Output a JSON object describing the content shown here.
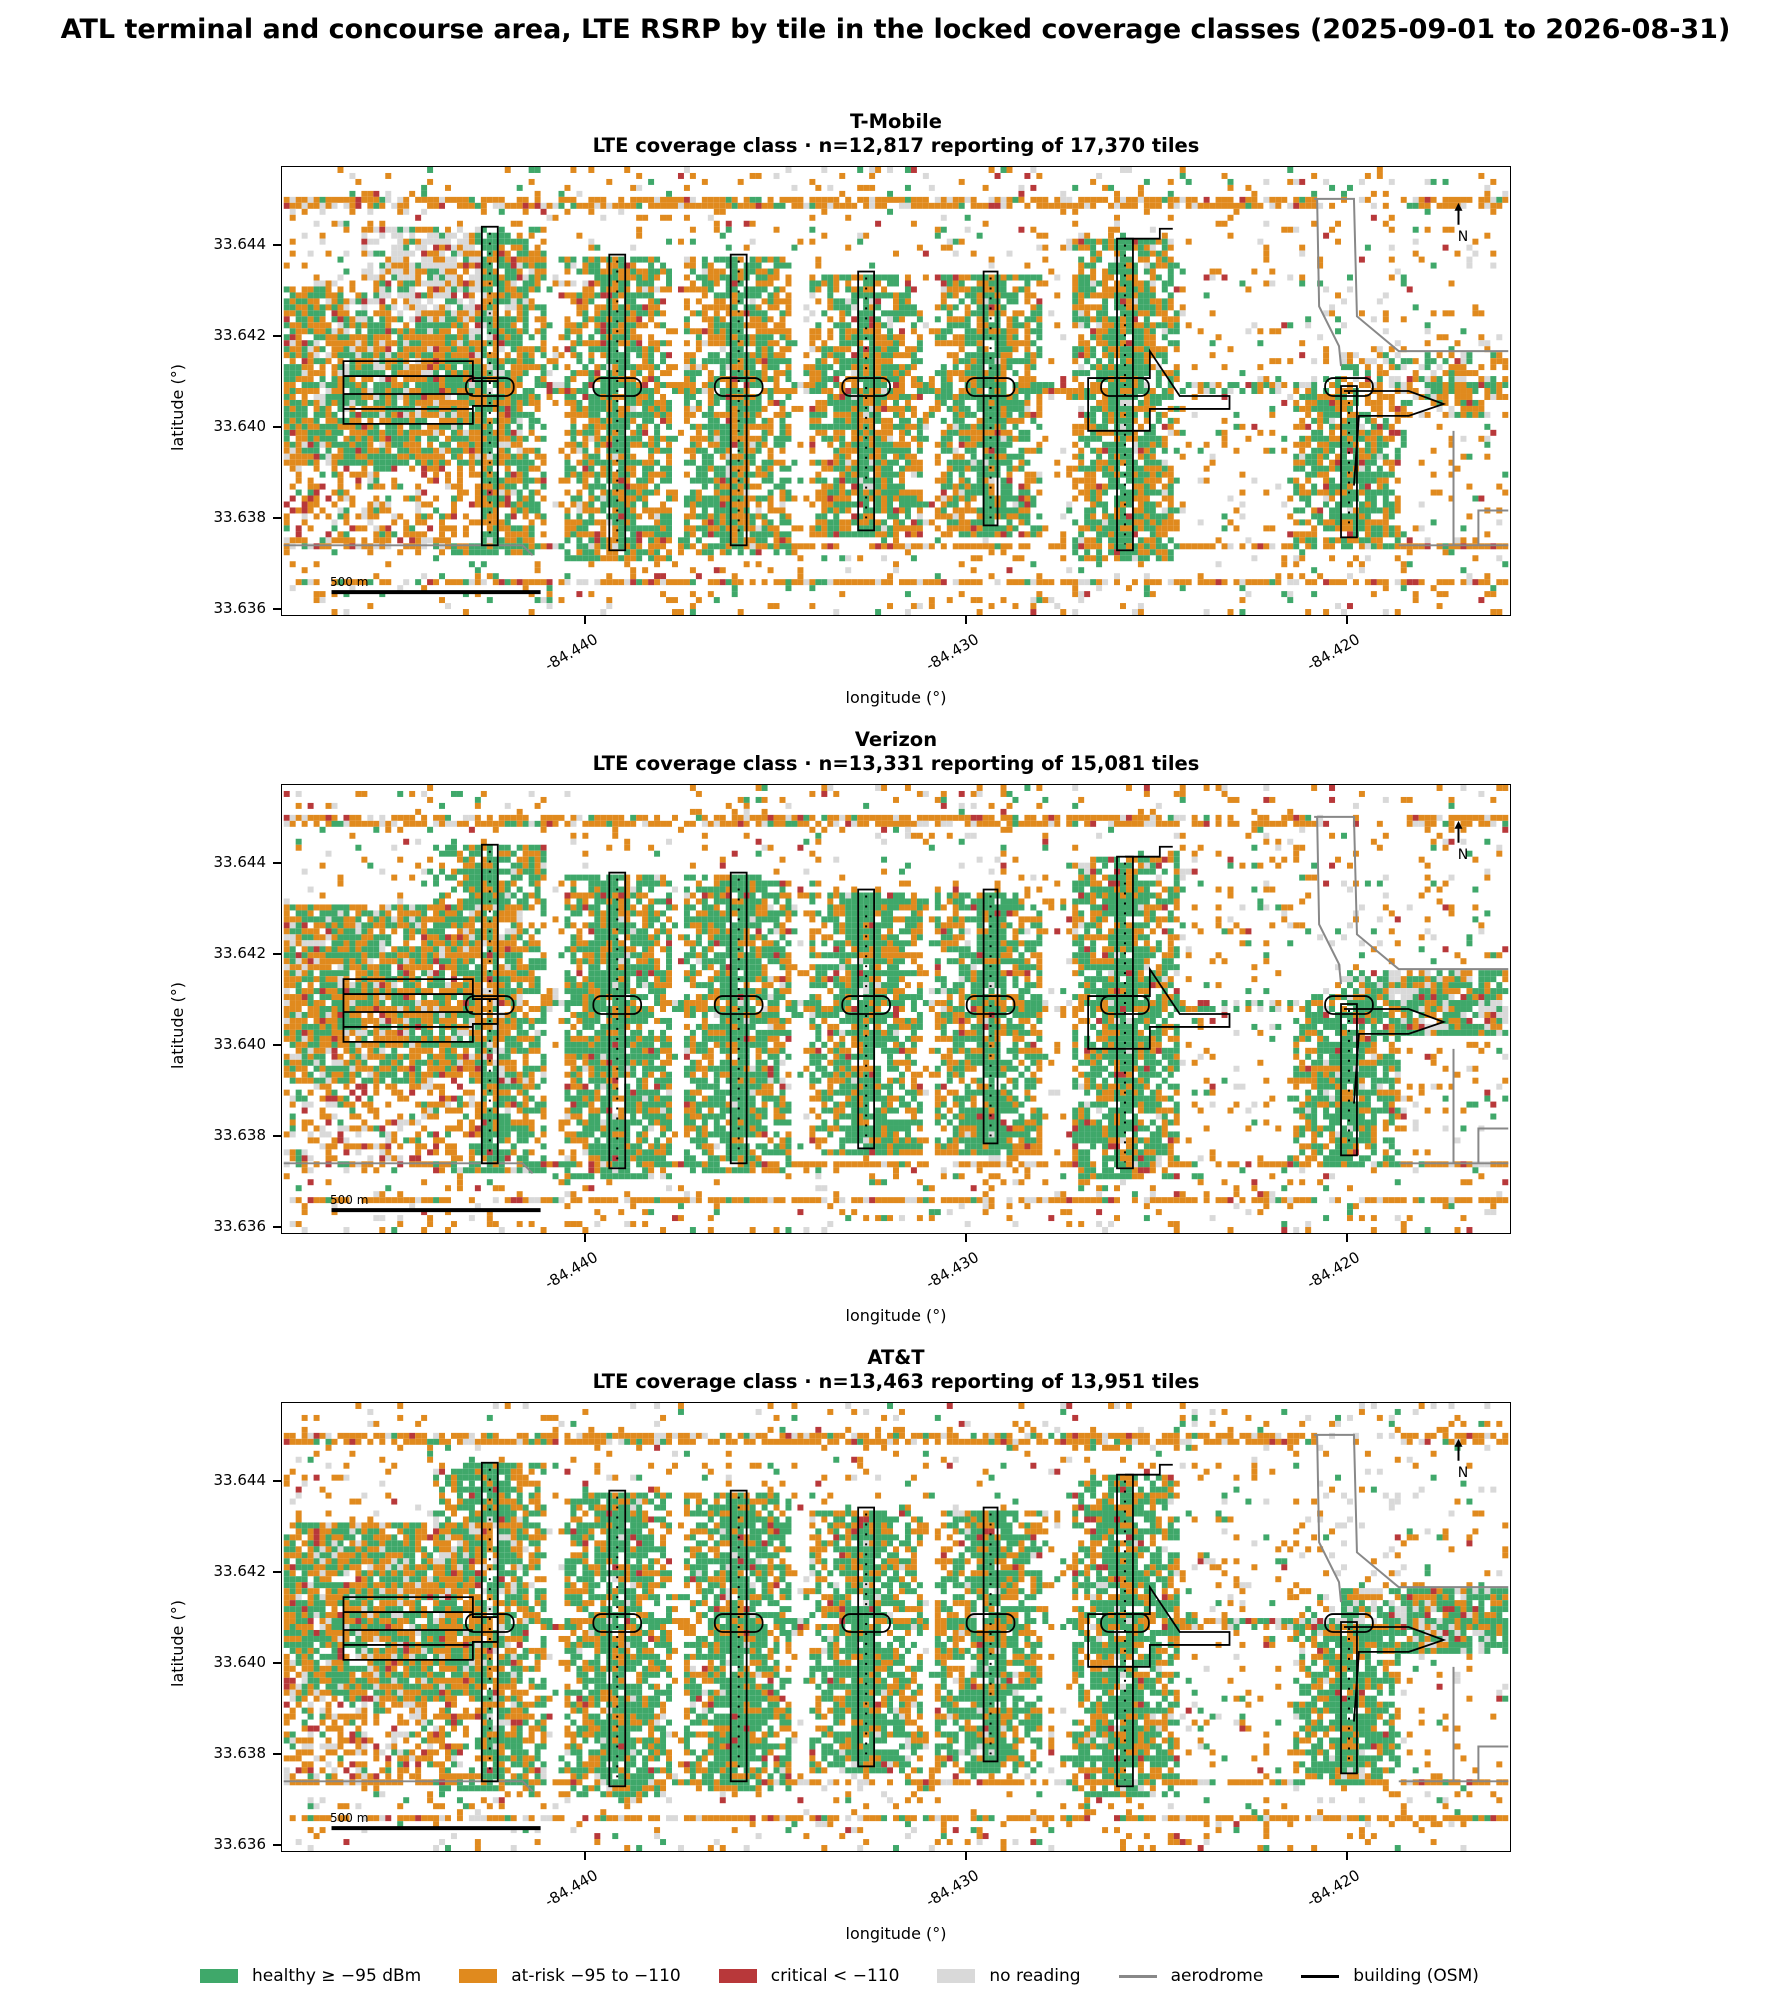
{
  "title": "ATL terminal and concourse area, LTE RSRP by tile in the locked coverage classes (2025-09-01 to 2026-08-31)",
  "panels": [
    {
      "carrier": "T-Mobile",
      "subtitle": "LTE coverage class · n=12,817 reporting of 17,370 tiles"
    },
    {
      "carrier": "Verizon",
      "subtitle": "LTE coverage class · n=13,331 reporting of 15,081 tiles"
    },
    {
      "carrier": "AT&T",
      "subtitle": "LTE coverage class · n=13,463 reporting of 13,951 tiles"
    }
  ],
  "axes": {
    "xlabel": "longitude (°)",
    "ylabel": "latitude (°)",
    "xticks": [
      "-84.440",
      "-84.430",
      "-84.420"
    ],
    "yticks": [
      "33.644",
      "33.642",
      "33.640",
      "33.638",
      "33.636"
    ],
    "north_label": "N",
    "scale_label": "500 m"
  },
  "legend": [
    {
      "label": "healthy ≥ −95 dBm",
      "color": "#3fa86a",
      "kind": "patch"
    },
    {
      "label": "at-risk −95 to −110",
      "color": "#e08a1e",
      "kind": "patch"
    },
    {
      "label": "critical < −110",
      "color": "#b8383a",
      "kind": "patch"
    },
    {
      "label": "no reading",
      "color": "#d9d9d9",
      "kind": "patch"
    },
    {
      "label": "aerodrome",
      "color": "#888888",
      "kind": "line"
    },
    {
      "label": "building (OSM)",
      "color": "#000000",
      "kind": "line"
    }
  ],
  "colors": {
    "healthy": "#3fa86a",
    "atrisk": "#e08a1e",
    "critical": "#b8383a",
    "noreading": "#d9d9d9"
  }
}
